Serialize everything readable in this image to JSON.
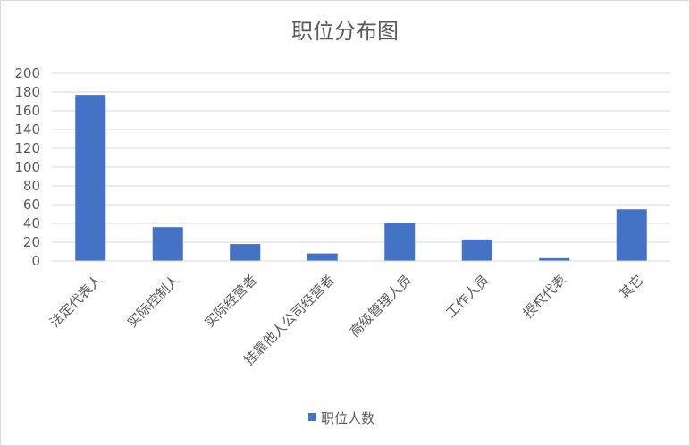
{
  "chart_data": {
    "type": "bar",
    "title": "职位分布图",
    "categories": [
      "法定代表人",
      "实际控制人",
      "实际经营者",
      "挂靠他人公司经营者",
      "高级管理人员",
      "工作人员",
      "授权代表",
      "其它"
    ],
    "series": [
      {
        "name": "职位人数",
        "values": [
          177,
          36,
          18,
          8,
          41,
          23,
          3,
          55
        ]
      }
    ],
    "ylim": [
      0,
      200
    ],
    "yticks": [
      0,
      20,
      40,
      60,
      80,
      100,
      120,
      140,
      160,
      180,
      200
    ],
    "grid": true,
    "legend_position": "bottom",
    "colors": {
      "bar": "#4472c4",
      "grid": "#d9d9d9",
      "text": "#595959"
    }
  }
}
